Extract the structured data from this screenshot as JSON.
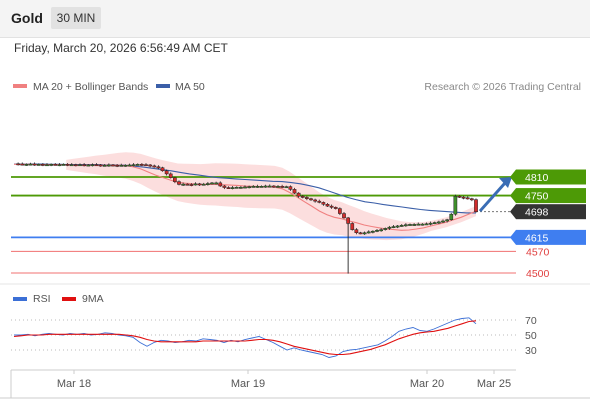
{
  "header": {
    "asset": "Gold",
    "timeframe": "30 MIN"
  },
  "datetime": "Friday, March 20, 2026 6:56:49 AM CET",
  "legend": {
    "ma20": "MA 20 + Bollinger Bands",
    "ma50": "MA 50",
    "ma20_color": "#f08080",
    "ma50_color": "#3b5fa8",
    "credit": "Research © 2026 Trading Central"
  },
  "rsi_legend": {
    "rsi": "RSI",
    "ma9": "9MA",
    "rsi_color": "#3b6fd6",
    "ma9_color": "#e01010"
  },
  "colors": {
    "resistance": "#4d9a06",
    "support": "#3f7ef0",
    "minor_support": "#f07070",
    "last_price": "#333333"
  },
  "chart_data": [
    {
      "type": "line",
      "subtype": "candlestick",
      "title": "Gold",
      "x_tick_labels": [
        "Mar 18",
        "Mar 19",
        "Mar 20",
        "Mar 25"
      ],
      "y_range": [
        4460,
        4880
      ],
      "grid": false,
      "legend_position": "top-left",
      "price_series": [
        4853,
        4852,
        4851,
        4851,
        4852,
        4851,
        4851,
        4850,
        4850,
        4851,
        4850,
        4850,
        4851,
        4850,
        4850,
        4849,
        4850,
        4849,
        4849,
        4850,
        4849,
        4848,
        4848,
        4849,
        4848,
        4847,
        4848,
        4848,
        4849,
        4850,
        4851,
        4850,
        4849,
        4846,
        4843,
        4840,
        4830,
        4820,
        4808,
        4795,
        4786,
        4787,
        4786,
        4785,
        4788,
        4786,
        4787,
        4789,
        4791,
        4791,
        4781,
        4776,
        4775,
        4776,
        4777,
        4777,
        4778,
        4779,
        4780,
        4780,
        4780,
        4781,
        4781,
        4780,
        4780,
        4779,
        4779,
        4770,
        4758,
        4748,
        4744,
        4740,
        4736,
        4732,
        4728,
        4722,
        4716,
        4712,
        4708,
        4692,
        4678,
        4660,
        4640,
        4630,
        4628,
        4630,
        4633,
        4635,
        4638,
        4640,
        4644,
        4648,
        4650,
        4652,
        4654,
        4656,
        4657,
        4657,
        4658,
        4658,
        4659,
        4661,
        4663,
        4665,
        4668,
        4672,
        4690,
        4748,
        4745,
        4743,
        4740,
        4737,
        4698
      ],
      "ma20": [
        4851,
        4851,
        4851,
        4850,
        4850,
        4850,
        4850,
        4849,
        4849,
        4849,
        4849,
        4849,
        4848,
        4848,
        4848,
        4847,
        4843,
        4836,
        4826,
        4816,
        4808,
        4800,
        4793,
        4790,
        4788,
        4786,
        4786,
        4786,
        4785,
        4784,
        4783,
        4781,
        4780,
        4779,
        4778,
        4777,
        4772,
        4760,
        4745,
        4730,
        4715,
        4700,
        4688,
        4680,
        4675,
        4668,
        4662,
        4655,
        4650,
        4646,
        4642,
        4640,
        4638,
        4639,
        4642,
        4646,
        4652,
        4658,
        4664,
        4672,
        4680,
        4690,
        4700
      ],
      "ma50": [
        4852,
        4852,
        4852,
        4852,
        4851,
        4851,
        4850,
        4850,
        4850,
        4850,
        4849,
        4849,
        4848,
        4845,
        4842,
        4838,
        4834,
        4830,
        4825,
        4820,
        4816,
        4812,
        4808,
        4806,
        4804,
        4802,
        4800,
        4798,
        4796,
        4795,
        4792,
        4788,
        4782,
        4775,
        4765,
        4755,
        4745,
        4737,
        4730,
        4726,
        4721,
        4717,
        4713,
        4709,
        4705,
        4702,
        4700,
        4698,
        4696,
        4694,
        4694
      ],
      "levels": [
        {
          "label": "4810",
          "value": 4810,
          "kind": "resistance"
        },
        {
          "label": "4750",
          "value": 4750,
          "kind": "resistance"
        },
        {
          "label": "4698",
          "value": 4698,
          "kind": "last"
        },
        {
          "label": "4615",
          "value": 4615,
          "kind": "support"
        },
        {
          "label": "4570",
          "value": 4570,
          "kind": "minor"
        },
        {
          "label": "4500",
          "value": 4500,
          "kind": "minor"
        }
      ],
      "projection": {
        "direction": "up",
        "from": 4700,
        "to": 4810
      }
    },
    {
      "type": "line",
      "title": "RSI",
      "y_range": [
        0,
        100
      ],
      "y_tick_labels": [
        "70",
        "50",
        "30"
      ],
      "y_ticks": [
        70,
        50,
        30
      ],
      "series": [
        {
          "name": "RSI",
          "values": [
            50,
            50,
            51,
            49,
            51,
            52,
            51,
            50,
            52,
            51,
            52,
            50,
            51,
            53,
            52,
            50,
            49,
            47,
            40,
            35,
            40,
            43,
            42,
            40,
            41,
            43,
            42,
            45,
            44,
            43,
            40,
            43,
            41,
            44,
            46,
            48,
            44,
            40,
            35,
            30,
            33,
            30,
            28,
            26,
            24,
            20,
            22,
            28,
            30,
            31,
            33,
            35,
            37,
            42,
            48,
            55,
            58,
            60,
            56,
            55,
            58,
            62,
            66,
            70,
            72,
            73,
            65
          ]
        },
        {
          "name": "9MA",
          "values": [
            48,
            49,
            50,
            50,
            50,
            51,
            51,
            51,
            51,
            51,
            51,
            51,
            51,
            51,
            51,
            51,
            50,
            49,
            47,
            44,
            42,
            41,
            41,
            41,
            41,
            41,
            41,
            42,
            42,
            42,
            42,
            42,
            42,
            42,
            43,
            44,
            44,
            43,
            41,
            38,
            35,
            33,
            31,
            29,
            27,
            25,
            24,
            24,
            25,
            27,
            29,
            31,
            34,
            37,
            41,
            45,
            48,
            51,
            53,
            54,
            55,
            57,
            59,
            62,
            65,
            68,
            69
          ]
        }
      ]
    }
  ]
}
